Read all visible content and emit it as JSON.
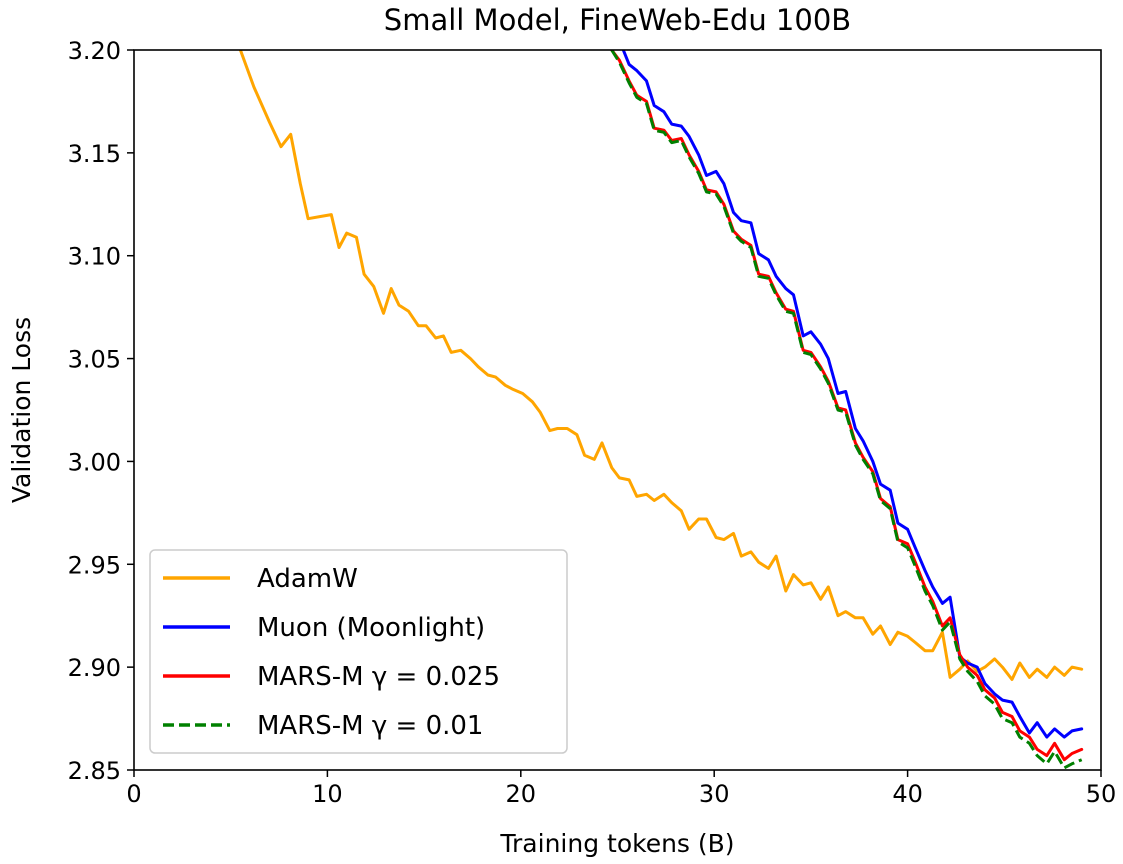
{
  "chart_data": {
    "type": "line",
    "title": "Small Model, FineWeb-Edu 100B",
    "xlabel": "Training tokens (B)",
    "ylabel": "Validation Loss",
    "xlim": [
      0,
      50
    ],
    "ylim": [
      2.85,
      3.2
    ],
    "x_ticks": [
      "0",
      "10",
      "20",
      "30",
      "40",
      "50"
    ],
    "y_ticks": [
      "2.85",
      "2.90",
      "2.95",
      "3.00",
      "3.05",
      "3.10",
      "3.15",
      "3.20"
    ],
    "grid": false,
    "legend_position": "lower-left",
    "series": [
      {
        "name": "AdamW",
        "color": "#FFA500",
        "dashed": false,
        "x": [
          5.5,
          6.2,
          7.0,
          7.6,
          8.1,
          8.6,
          9.0,
          9.6,
          10.2,
          10.6,
          11.0,
          11.5,
          11.9,
          12.4,
          12.9,
          13.3,
          13.7,
          14.2,
          14.7,
          15.1,
          15.6,
          16.0,
          16.4,
          16.9,
          17.4,
          17.8,
          18.3,
          18.7,
          19.2,
          19.6,
          20.1,
          20.6,
          21.0,
          21.5,
          21.9,
          22.4,
          22.9,
          23.3,
          23.8,
          24.2,
          24.7,
          25.1,
          25.6,
          26.0,
          26.5,
          26.9,
          27.4,
          27.8,
          28.3,
          28.7,
          29.2,
          29.6,
          30.1,
          30.5,
          31.0,
          31.4,
          31.9,
          32.3,
          32.8,
          33.2,
          33.7,
          34.1,
          34.6,
          35.0,
          35.5,
          35.9,
          36.4,
          36.8,
          37.3,
          37.7,
          38.2,
          38.6,
          39.1,
          39.5,
          40.0,
          40.4,
          40.9,
          41.3,
          41.8,
          42.2,
          42.7,
          43.1,
          43.6,
          44.0,
          44.5,
          44.9,
          45.4,
          45.8,
          46.3,
          46.7,
          47.2,
          47.6,
          48.1,
          48.5,
          49.0
        ],
        "y": [
          3.2,
          3.182,
          3.165,
          3.153,
          3.159,
          3.135,
          3.118,
          3.119,
          3.12,
          3.104,
          3.111,
          3.109,
          3.091,
          3.085,
          3.072,
          3.084,
          3.076,
          3.073,
          3.066,
          3.066,
          3.06,
          3.061,
          3.053,
          3.054,
          3.05,
          3.046,
          3.042,
          3.041,
          3.037,
          3.035,
          3.033,
          3.029,
          3.024,
          3.015,
          3.016,
          3.016,
          3.013,
          3.003,
          3.001,
          3.009,
          2.997,
          2.992,
          2.991,
          2.983,
          2.984,
          2.981,
          2.984,
          2.98,
          2.976,
          2.967,
          2.972,
          2.972,
          2.963,
          2.962,
          2.965,
          2.954,
          2.956,
          2.951,
          2.948,
          2.954,
          2.937,
          2.945,
          2.94,
          2.941,
          2.933,
          2.939,
          2.925,
          2.927,
          2.924,
          2.924,
          2.916,
          2.92,
          2.911,
          2.917,
          2.915,
          2.912,
          2.908,
          2.908,
          2.917,
          2.895,
          2.899,
          2.903,
          2.898,
          2.9,
          2.904,
          2.9,
          2.894,
          2.902,
          2.895,
          2.899,
          2.895,
          2.9,
          2.896,
          2.9,
          2.899
        ]
      },
      {
        "name": "Muon (Moonlight)",
        "color": "#0000FF",
        "dashed": false,
        "x": [
          25.3,
          25.6,
          26.0,
          26.5,
          26.9,
          27.4,
          27.8,
          28.3,
          28.7,
          29.2,
          29.6,
          30.1,
          30.5,
          31.0,
          31.4,
          31.9,
          32.3,
          32.8,
          33.2,
          33.7,
          34.1,
          34.6,
          35.0,
          35.5,
          35.9,
          36.4,
          36.8,
          37.3,
          37.7,
          38.2,
          38.6,
          39.1,
          39.5,
          40.0,
          40.4,
          40.9,
          41.3,
          41.8,
          42.2,
          42.7,
          43.1,
          43.6,
          44.0,
          44.5,
          44.9,
          45.4,
          45.8,
          46.3,
          46.7,
          47.2,
          47.6,
          48.1,
          48.5,
          49.0
        ],
        "y": [
          3.2,
          3.193,
          3.19,
          3.185,
          3.173,
          3.17,
          3.164,
          3.163,
          3.158,
          3.149,
          3.139,
          3.141,
          3.135,
          3.121,
          3.117,
          3.116,
          3.101,
          3.098,
          3.09,
          3.084,
          3.081,
          3.061,
          3.063,
          3.057,
          3.05,
          3.033,
          3.034,
          3.016,
          3.01,
          3.0,
          2.989,
          2.986,
          2.97,
          2.967,
          2.958,
          2.947,
          2.939,
          2.931,
          2.934,
          2.905,
          2.902,
          2.9,
          2.892,
          2.887,
          2.884,
          2.883,
          2.876,
          2.868,
          2.873,
          2.866,
          2.87,
          2.866,
          2.869,
          2.87
        ]
      },
      {
        "name": "MARS-M γ = 0.025",
        "color": "#FF0000",
        "dashed": false,
        "x": [
          24.7,
          25.1,
          25.6,
          26.0,
          26.5,
          26.9,
          27.4,
          27.8,
          28.3,
          28.7,
          29.2,
          29.6,
          30.1,
          30.5,
          31.0,
          31.4,
          31.9,
          32.3,
          32.8,
          33.2,
          33.7,
          34.1,
          34.6,
          35.0,
          35.5,
          35.9,
          36.4,
          36.8,
          37.3,
          37.7,
          38.2,
          38.6,
          39.1,
          39.5,
          40.0,
          40.4,
          40.9,
          41.3,
          41.8,
          42.2,
          42.7,
          43.1,
          43.6,
          44.0,
          44.5,
          44.9,
          45.4,
          45.8,
          46.3,
          46.7,
          47.2,
          47.6,
          48.1,
          48.5,
          49.0
        ],
        "y": [
          3.2,
          3.195,
          3.185,
          3.178,
          3.175,
          3.162,
          3.161,
          3.156,
          3.157,
          3.149,
          3.141,
          3.132,
          3.131,
          3.125,
          3.112,
          3.108,
          3.105,
          3.091,
          3.09,
          3.082,
          3.074,
          3.073,
          3.054,
          3.053,
          3.046,
          3.039,
          3.026,
          3.025,
          3.009,
          3.002,
          2.995,
          2.982,
          2.978,
          2.962,
          2.96,
          2.951,
          2.939,
          2.932,
          2.92,
          2.924,
          2.906,
          2.9,
          2.896,
          2.889,
          2.885,
          2.878,
          2.876,
          2.869,
          2.866,
          2.86,
          2.857,
          2.863,
          2.855,
          2.858,
          2.86
        ]
      },
      {
        "name": "MARS-M γ = 0.01",
        "color": "#008000",
        "dashed": true,
        "x": [
          24.7,
          25.1,
          25.6,
          26.0,
          26.5,
          26.9,
          27.4,
          27.8,
          28.3,
          28.7,
          29.2,
          29.6,
          30.1,
          30.5,
          31.0,
          31.4,
          31.9,
          32.3,
          32.8,
          33.2,
          33.7,
          34.1,
          34.6,
          35.0,
          35.5,
          35.9,
          36.4,
          36.8,
          37.3,
          37.7,
          38.2,
          38.6,
          39.1,
          39.5,
          40.0,
          40.4,
          40.9,
          41.3,
          41.8,
          42.2,
          42.7,
          43.1,
          43.6,
          44.0,
          44.5,
          44.9,
          45.4,
          45.8,
          46.3,
          46.7,
          47.2,
          47.6,
          48.1,
          48.5,
          49.0
        ],
        "y": [
          3.2,
          3.194,
          3.184,
          3.177,
          3.174,
          3.161,
          3.16,
          3.155,
          3.156,
          3.148,
          3.14,
          3.131,
          3.13,
          3.124,
          3.111,
          3.107,
          3.104,
          3.09,
          3.089,
          3.081,
          3.073,
          3.072,
          3.053,
          3.052,
          3.045,
          3.038,
          3.025,
          3.024,
          3.008,
          3.001,
          2.994,
          2.981,
          2.977,
          2.961,
          2.958,
          2.949,
          2.937,
          2.93,
          2.918,
          2.922,
          2.904,
          2.898,
          2.893,
          2.886,
          2.882,
          2.875,
          2.873,
          2.866,
          2.863,
          2.857,
          2.853,
          2.859,
          2.851,
          2.853,
          2.855
        ]
      }
    ]
  }
}
